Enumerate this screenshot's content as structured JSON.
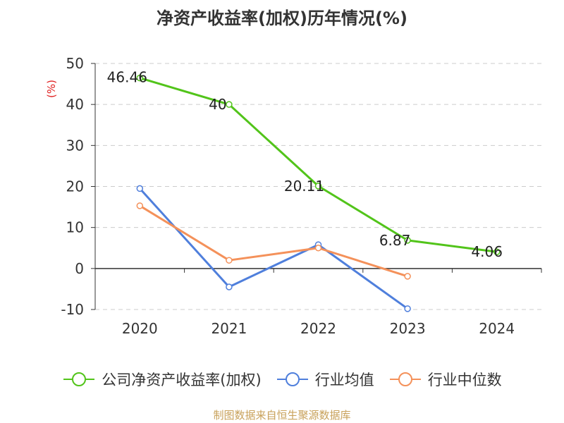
{
  "title": "净资产收益率(加权)历年情况(%)",
  "source": "制图数据来自恒生聚源数据库",
  "chart_data": {
    "type": "line",
    "title": "净资产收益率(加权)历年情况(%)",
    "ylabel": "(%)",
    "ylim": [
      -10,
      50
    ],
    "yticks": [
      "50",
      "40",
      "30",
      "20",
      "10",
      "0",
      "-10"
    ],
    "categories": [
      "2020",
      "2021",
      "2022",
      "2023",
      "2024"
    ],
    "grid": true,
    "legend_position": "bottom",
    "series": [
      {
        "name": "公司净资产收益率(加权)",
        "color": "#52c41a",
        "values": [
          46.46,
          40,
          20.11,
          6.87,
          4.06
        ],
        "labels": [
          "46.46",
          "40",
          "20.11",
          "6.87",
          "4.06"
        ]
      },
      {
        "name": "行业均值",
        "color": "#4f7fdc",
        "values": [
          19.5,
          -4.5,
          5.8,
          -9.8,
          null
        ]
      },
      {
        "name": "行业中位数",
        "color": "#f4915a",
        "values": [
          15.3,
          2.0,
          5.0,
          -1.9,
          null
        ]
      }
    ]
  }
}
